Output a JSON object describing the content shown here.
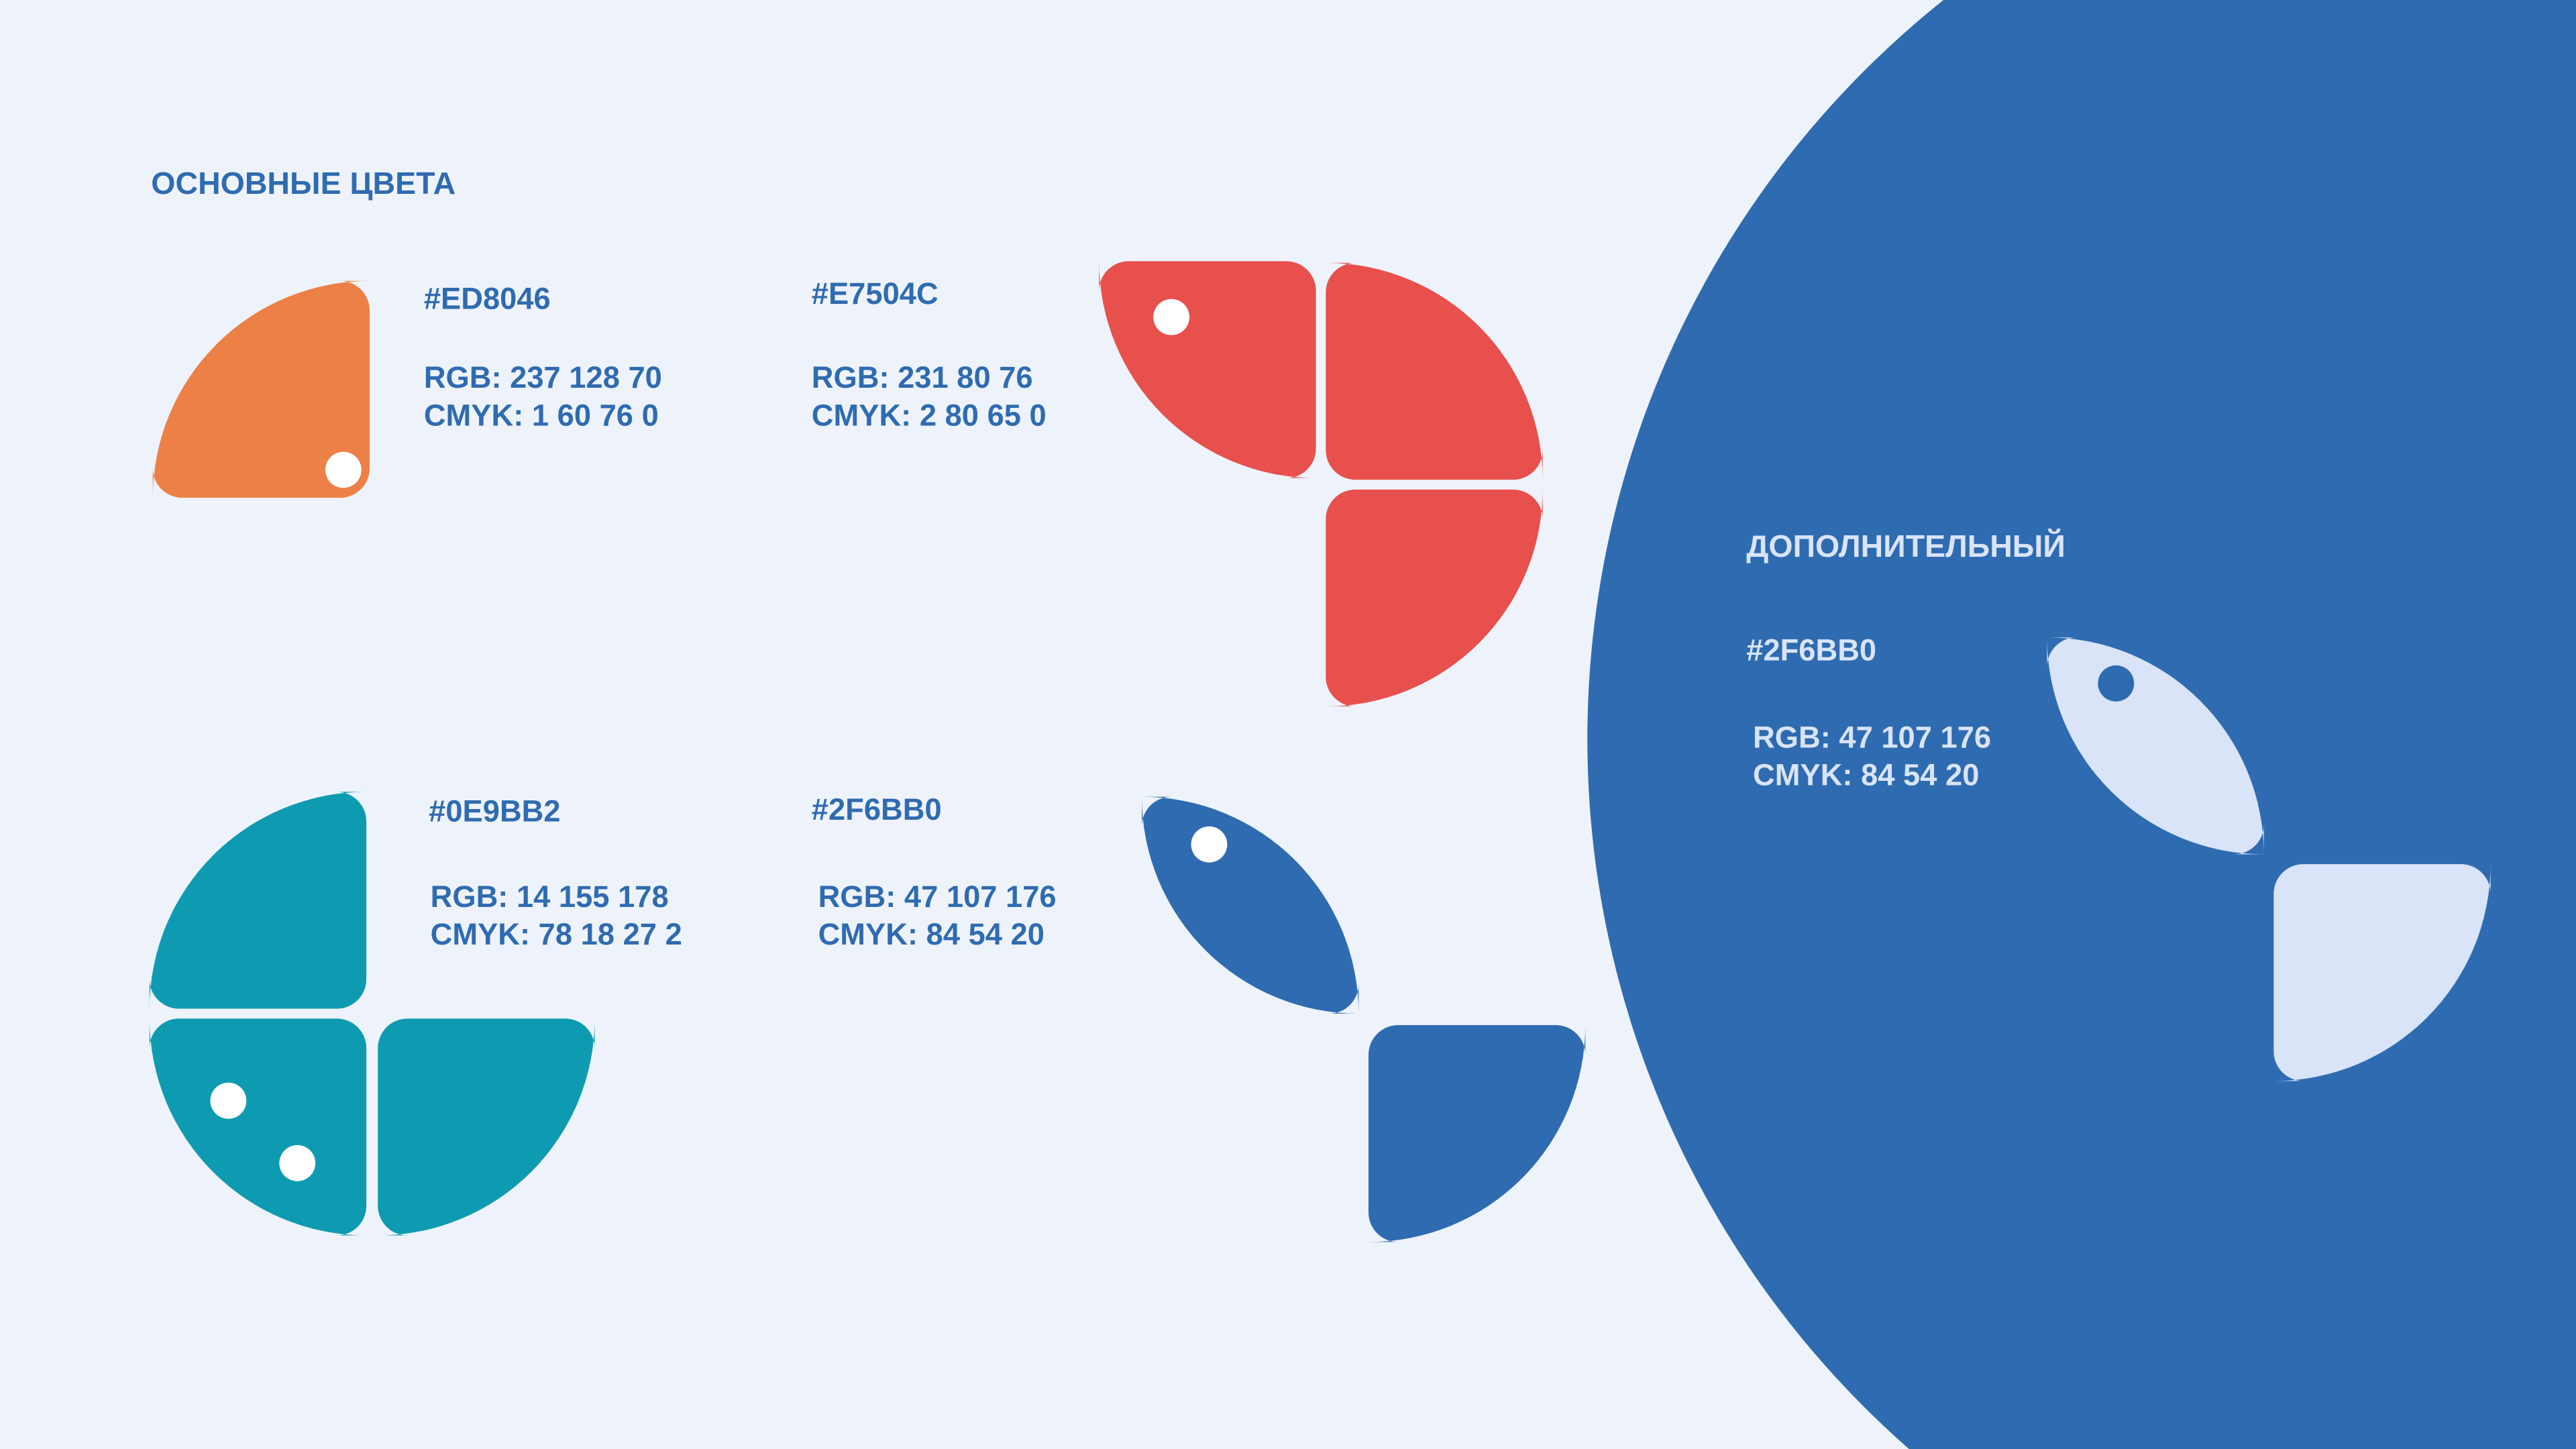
{
  "colors": {
    "background": "#EEF3FB",
    "orange": "#ED8046",
    "red": "#E7504C",
    "teal": "#0E9BB2",
    "blue": "#2F6BB0",
    "light": "#D9E4F8",
    "white": "#FFFFFF"
  },
  "primary": {
    "title": "ОСНОВНЫЕ ЦВЕТА",
    "swatches": [
      {
        "hex": "#ED8046",
        "rgb": "RGB: 237  128  70",
        "cmyk": "CMYK: 1  60  76  0"
      },
      {
        "hex": "#E7504C",
        "rgb": "RGB: 231  80  76",
        "cmyk": "CMYK: 2  80  65  0"
      },
      {
        "hex": "#0E9BB2",
        "rgb": "RGB: 14  155  178",
        "cmyk": "CMYK: 78  18  27  2"
      },
      {
        "hex": "#2F6BB0",
        "rgb": "RGB: 47  107  176",
        "cmyk": "CMYK: 84  54  20"
      }
    ]
  },
  "secondary": {
    "title": "ДОПОЛНИТЕЛЬНЫЙ",
    "hex": "#2F6BB0",
    "rgb": "RGB: 47  107  176",
    "cmyk": "CMYK: 84  54  20"
  }
}
